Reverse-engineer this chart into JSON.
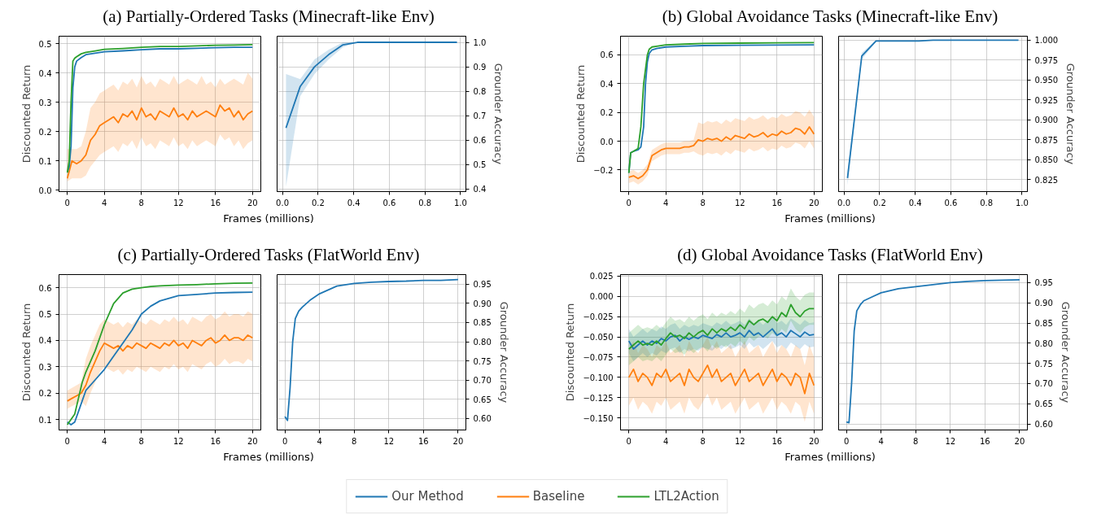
{
  "chart_data": [
    {
      "type": "line",
      "title": "(a) Partially-Ordered Tasks (Minecraft-like Env)",
      "xlabel": "Frames (millions)",
      "ylabel": "Discounted Return",
      "grid": true,
      "legend": "bottom",
      "xlim": [
        -0.9,
        20.9
      ],
      "xticks": [
        0,
        4,
        8,
        12,
        16,
        20
      ],
      "ylim": [
        -0.005,
        0.525
      ],
      "yticks": [
        {
          "value": 0,
          "label": "0.0"
        },
        {
          "value": 0.1,
          "label": "0.1"
        },
        {
          "value": 0.2,
          "label": "0.2"
        },
        {
          "value": 0.3,
          "label": "0.3"
        },
        {
          "value": 0.4,
          "label": "0.4"
        },
        {
          "value": 0.5,
          "label": "0.5"
        }
      ],
      "x": [
        0,
        0.5,
        1,
        1.5,
        2,
        2.5,
        3,
        3.5,
        4,
        4.5,
        5,
        5.5,
        6,
        6.5,
        7,
        7.5,
        8,
        8.5,
        9,
        9.5,
        10,
        10.5,
        11,
        11.5,
        12,
        12.5,
        13,
        13.5,
        14,
        14.5,
        15,
        15.5,
        16,
        16.5,
        17,
        17.5,
        18,
        18.5,
        19,
        19.5,
        20
      ],
      "series": [
        {
          "name": "Baseline",
          "color": "#ff7f0e",
          "values": [
            0.04,
            0.1,
            0.09,
            0.1,
            0.12,
            0.17,
            0.19,
            0.22,
            0.23,
            0.24,
            0.25,
            0.23,
            0.26,
            0.25,
            0.27,
            0.24,
            0.28,
            0.25,
            0.26,
            0.24,
            0.27,
            0.26,
            0.25,
            0.28,
            0.25,
            0.26,
            0.24,
            0.27,
            0.25,
            0.26,
            0.27,
            0.26,
            0.25,
            0.29,
            0.27,
            0.28,
            0.25,
            0.27,
            0.24,
            0.26,
            0.27
          ],
          "lower": [
            0.03,
            0.04,
            0.04,
            0.04,
            0.05,
            0.08,
            0.1,
            0.12,
            0.13,
            0.14,
            0.15,
            0.13,
            0.16,
            0.15,
            0.17,
            0.14,
            0.18,
            0.15,
            0.16,
            0.14,
            0.17,
            0.16,
            0.15,
            0.18,
            0.15,
            0.16,
            0.14,
            0.17,
            0.15,
            0.16,
            0.17,
            0.16,
            0.15,
            0.19,
            0.17,
            0.18,
            0.15,
            0.17,
            0.14,
            0.16,
            0.17
          ],
          "upper": [
            0.14,
            0.14,
            0.14,
            0.15,
            0.2,
            0.28,
            0.3,
            0.33,
            0.34,
            0.35,
            0.36,
            0.34,
            0.37,
            0.36,
            0.38,
            0.35,
            0.39,
            0.36,
            0.37,
            0.35,
            0.38,
            0.37,
            0.36,
            0.39,
            0.36,
            0.37,
            0.38,
            0.37,
            0.36,
            0.39,
            0.36,
            0.37,
            0.35,
            0.38,
            0.36,
            0.37,
            0.38,
            0.37,
            0.36,
            0.4,
            0.38
          ]
        },
        {
          "name": "Our Method",
          "color": "#1f77b4",
          "x": [
            0,
            0.2,
            0.4,
            0.6,
            0.8,
            1.0,
            1.5,
            2,
            3,
            4,
            6,
            8,
            10,
            12,
            14,
            16,
            18,
            20
          ],
          "values": [
            0.06,
            0.08,
            0.15,
            0.35,
            0.42,
            0.44,
            0.452,
            0.462,
            0.467,
            0.472,
            0.475,
            0.479,
            0.482,
            0.482,
            0.484,
            0.486,
            0.487,
            0.487
          ]
        },
        {
          "name": "LTL2Action",
          "color": "#2ca02c",
          "x": [
            0,
            0.2,
            0.4,
            0.6,
            0.8,
            1.0,
            1.5,
            2,
            3,
            4,
            6,
            8,
            10,
            12,
            14,
            16,
            18,
            20
          ],
          "values": [
            0.06,
            0.1,
            0.3,
            0.44,
            0.45,
            0.455,
            0.465,
            0.47,
            0.475,
            0.48,
            0.483,
            0.487,
            0.49,
            0.49,
            0.492,
            0.494,
            0.495,
            0.496
          ]
        }
      ]
    },
    {
      "type": "line",
      "y2label": "Grounder Accuracy",
      "grid": true,
      "xlim": [
        -0.03,
        1.03
      ],
      "xticks": [
        {
          "value": 0,
          "label": "0.0"
        },
        {
          "value": 0.2,
          "label": "0.2"
        },
        {
          "value": 0.4,
          "label": "0.4"
        },
        {
          "value": 0.6,
          "label": "0.6"
        },
        {
          "value": 0.8,
          "label": "0.8"
        },
        {
          "value": 1,
          "label": "1.0"
        }
      ],
      "y2lim": [
        0.39,
        1.025
      ],
      "y2ticks": [
        0.4,
        0.5,
        0.6,
        0.7,
        0.8,
        0.9,
        {
          "value": 1,
          "label": "1.0"
        }
      ],
      "series": [
        {
          "color": "#1f77b4",
          "axis": "y2",
          "x": [
            0.02,
            0.1,
            0.18,
            0.26,
            0.34,
            0.42,
            0.5,
            0.58,
            0.66,
            0.74,
            0.82,
            0.9,
            0.98
          ],
          "values": [
            0.65,
            0.82,
            0.9,
            0.95,
            0.99,
            1.0,
            1.0,
            1.0,
            1.0,
            1.0,
            1.0,
            1.0,
            1.0
          ],
          "lower": [
            0.41,
            0.78,
            0.87,
            0.93,
            0.98,
            1.0,
            1.0,
            1.0,
            1.0,
            1.0,
            1.0,
            1.0,
            1.0
          ],
          "upper": [
            0.87,
            0.85,
            0.93,
            0.97,
            1.0,
            1.0,
            1.0,
            1.0,
            1.0,
            1.0,
            1.0,
            1.0,
            1.0
          ]
        }
      ]
    },
    {
      "type": "line",
      "title": "(b) Global Avoidance Tasks (Minecraft-like Env)",
      "xlabel": "Frames (millions)",
      "ylabel": "Discounted Return",
      "grid": true,
      "xlim": [
        -0.9,
        20.9
      ],
      "xticks": [
        0,
        4,
        8,
        12,
        16,
        20
      ],
      "ylim": [
        -0.35,
        0.73
      ],
      "yticks": [
        {
          "value": -0.2,
          "label": "−0.2"
        },
        {
          "value": 0,
          "label": "0.0"
        },
        {
          "value": 0.2,
          "label": "0.2"
        },
        {
          "value": 0.4,
          "label": "0.4"
        },
        {
          "value": 0.6,
          "label": "0.6"
        }
      ],
      "x": [
        0,
        0.5,
        1,
        1.5,
        2,
        2.5,
        3,
        3.5,
        4,
        4.5,
        5,
        5.5,
        6,
        6.5,
        7,
        7.5,
        8,
        8.5,
        9,
        9.5,
        10,
        10.5,
        11,
        11.5,
        12,
        12.5,
        13,
        13.5,
        14,
        14.5,
        15,
        15.5,
        16,
        16.5,
        17,
        17.5,
        18,
        18.5,
        19,
        19.5,
        20
      ],
      "series": [
        {
          "color": "#ff7f0e",
          "values": [
            -0.25,
            -0.24,
            -0.26,
            -0.24,
            -0.2,
            -0.1,
            -0.08,
            -0.06,
            -0.05,
            -0.05,
            -0.05,
            -0.05,
            -0.04,
            -0.04,
            -0.03,
            0.01,
            0.0,
            0.02,
            0.01,
            0.02,
            0.0,
            0.03,
            0.01,
            0.04,
            0.03,
            0.02,
            0.05,
            0.03,
            0.04,
            0.06,
            0.03,
            0.05,
            0.04,
            0.07,
            0.05,
            0.06,
            0.09,
            0.08,
            0.05,
            0.1,
            0.05
          ],
          "lower": [
            -0.29,
            -0.28,
            -0.3,
            -0.28,
            -0.24,
            -0.14,
            -0.12,
            -0.1,
            -0.09,
            -0.09,
            -0.09,
            -0.09,
            -0.08,
            -0.08,
            -0.07,
            -0.09,
            -0.1,
            -0.08,
            -0.09,
            -0.08,
            -0.1,
            -0.07,
            -0.09,
            -0.06,
            -0.07,
            -0.08,
            -0.05,
            -0.07,
            -0.06,
            -0.04,
            -0.07,
            -0.05,
            -0.06,
            -0.03,
            -0.05,
            -0.04,
            -0.01,
            -0.02,
            -0.05,
            0.0,
            -0.05
          ],
          "upper": [
            -0.21,
            -0.2,
            -0.22,
            -0.2,
            -0.16,
            -0.06,
            -0.04,
            -0.02,
            -0.01,
            -0.01,
            -0.01,
            -0.01,
            0.0,
            0.0,
            0.01,
            0.13,
            0.12,
            0.14,
            0.13,
            0.14,
            0.12,
            0.15,
            0.13,
            0.16,
            0.15,
            0.14,
            0.17,
            0.15,
            0.16,
            0.18,
            0.15,
            0.17,
            0.16,
            0.19,
            0.17,
            0.18,
            0.21,
            0.2,
            0.17,
            0.22,
            0.17
          ]
        },
        {
          "color": "#1f77b4",
          "x": [
            0,
            0.2,
            0.5,
            1,
            1.3,
            1.6,
            1.8,
            2,
            2.2,
            2.5,
            3,
            4,
            6,
            8,
            12,
            16,
            20
          ],
          "values": [
            -0.22,
            -0.08,
            -0.07,
            -0.06,
            -0.04,
            0.1,
            0.4,
            0.55,
            0.61,
            0.635,
            0.645,
            0.655,
            0.66,
            0.665,
            0.667,
            0.669,
            0.67
          ]
        },
        {
          "color": "#2ca02c",
          "x": [
            0,
            0.2,
            0.5,
            1,
            1.3,
            1.6,
            1.8,
            2,
            2.2,
            2.5,
            3,
            4,
            6,
            8,
            12,
            16,
            20
          ],
          "values": [
            -0.22,
            -0.08,
            -0.07,
            -0.05,
            0.1,
            0.4,
            0.5,
            0.6,
            0.64,
            0.655,
            0.66,
            0.67,
            0.675,
            0.68,
            0.682,
            0.684,
            0.685
          ]
        }
      ]
    },
    {
      "type": "line",
      "y2label": "Grounder Accuracy",
      "grid": true,
      "xlim": [
        -0.03,
        1.03
      ],
      "xticks": [
        {
          "value": 0,
          "label": "0.0"
        },
        {
          "value": 0.2,
          "label": "0.2"
        },
        {
          "value": 0.4,
          "label": "0.4"
        },
        {
          "value": 0.6,
          "label": "0.6"
        },
        {
          "value": 0.8,
          "label": "0.8"
        },
        {
          "value": 1,
          "label": "1.0"
        }
      ],
      "y2lim": [
        0.81,
        1.005
      ],
      "y2ticks": [
        0.825,
        {
          "value": 0.85,
          "label": "0.850"
        },
        0.875,
        {
          "value": 0.9,
          "label": "0.900"
        },
        0.925,
        {
          "value": 0.95,
          "label": "0.950"
        },
        0.975,
        {
          "value": 1,
          "label": "1.000"
        }
      ],
      "series": [
        {
          "color": "#1f77b4",
          "axis": "y2",
          "x": [
            0.02,
            0.1,
            0.18,
            0.26,
            0.34,
            0.42,
            0.5,
            0.58,
            0.66,
            0.74,
            0.82,
            0.9,
            0.98
          ],
          "values": [
            0.827,
            0.98,
            0.999,
            0.999,
            0.999,
            0.999,
            1.0,
            1.0,
            1.0,
            1.0,
            1.0,
            1.0,
            1.0
          ],
          "lower": [
            0.818,
            0.976,
            0.998,
            0.999,
            0.999,
            0.999,
            1.0,
            1.0,
            1.0,
            1.0,
            1.0,
            1.0,
            1.0
          ],
          "upper": [
            0.836,
            0.984,
            1.0,
            1.0,
            1.0,
            1.0,
            1.0,
            1.0,
            1.0,
            1.0,
            1.0,
            1.0,
            1.0
          ]
        }
      ]
    },
    {
      "type": "line",
      "title": "(c) Partially-Ordered Tasks (FlatWorld Env)",
      "xlabel": "Frames (millions)",
      "ylabel": "Discounted Return",
      "grid": true,
      "xlim": [
        -0.9,
        20.9
      ],
      "xticks": [
        0,
        4,
        8,
        12,
        16,
        20
      ],
      "ylim": [
        0.06,
        0.65
      ],
      "yticks": [
        0.1,
        0.2,
        0.3,
        0.4,
        0.5,
        0.6
      ],
      "x": [
        0,
        0.5,
        1,
        1.5,
        2,
        2.5,
        3,
        3.5,
        4,
        4.5,
        5,
        5.5,
        6,
        6.5,
        7,
        7.5,
        8,
        8.5,
        9,
        9.5,
        10,
        10.5,
        11,
        11.5,
        12,
        12.5,
        13,
        13.5,
        14,
        14.5,
        15,
        15.5,
        16,
        16.5,
        17,
        17.5,
        18,
        18.5,
        19,
        19.5,
        20
      ],
      "series": [
        {
          "color": "#ff7f0e",
          "values": [
            0.17,
            0.18,
            0.19,
            0.2,
            0.23,
            0.28,
            0.32,
            0.36,
            0.39,
            0.38,
            0.37,
            0.38,
            0.36,
            0.38,
            0.37,
            0.39,
            0.38,
            0.37,
            0.39,
            0.38,
            0.37,
            0.39,
            0.38,
            0.4,
            0.38,
            0.39,
            0.37,
            0.4,
            0.39,
            0.38,
            0.4,
            0.41,
            0.39,
            0.4,
            0.42,
            0.4,
            0.41,
            0.41,
            0.4,
            0.42,
            0.41
          ],
          "lower": [
            0.14,
            0.15,
            0.16,
            0.17,
            0.15,
            0.2,
            0.24,
            0.28,
            0.3,
            0.29,
            0.28,
            0.29,
            0.27,
            0.29,
            0.28,
            0.3,
            0.29,
            0.28,
            0.3,
            0.29,
            0.28,
            0.3,
            0.29,
            0.31,
            0.29,
            0.3,
            0.28,
            0.31,
            0.3,
            0.29,
            0.31,
            0.32,
            0.3,
            0.31,
            0.33,
            0.31,
            0.32,
            0.32,
            0.31,
            0.33,
            0.32
          ],
          "upper": [
            0.21,
            0.22,
            0.23,
            0.24,
            0.33,
            0.38,
            0.42,
            0.46,
            0.48,
            0.47,
            0.46,
            0.47,
            0.45,
            0.47,
            0.46,
            0.48,
            0.47,
            0.46,
            0.48,
            0.47,
            0.46,
            0.48,
            0.47,
            0.49,
            0.47,
            0.48,
            0.46,
            0.49,
            0.48,
            0.47,
            0.49,
            0.5,
            0.48,
            0.49,
            0.51,
            0.49,
            0.5,
            0.5,
            0.49,
            0.51,
            0.5
          ]
        },
        {
          "color": "#1f77b4",
          "x": [
            0,
            0.4,
            0.8,
            1.2,
            1.6,
            2,
            3,
            4,
            5,
            6,
            7,
            8,
            9,
            10,
            12,
            14,
            16,
            18,
            20
          ],
          "values": [
            0.09,
            0.08,
            0.09,
            0.13,
            0.17,
            0.21,
            0.25,
            0.29,
            0.34,
            0.39,
            0.44,
            0.5,
            0.53,
            0.55,
            0.57,
            0.575,
            0.58,
            0.582,
            0.583
          ]
        },
        {
          "color": "#2ca02c",
          "x": [
            0,
            0.4,
            0.8,
            1.2,
            1.6,
            2,
            3,
            4,
            5,
            6,
            7,
            8,
            9,
            10,
            12,
            14,
            16,
            18,
            20
          ],
          "values": [
            0.08,
            0.1,
            0.12,
            0.18,
            0.24,
            0.28,
            0.36,
            0.46,
            0.54,
            0.58,
            0.595,
            0.6,
            0.605,
            0.607,
            0.61,
            0.612,
            0.615,
            0.617,
            0.618
          ]
        }
      ]
    },
    {
      "type": "line",
      "y2label": "Grounder Accuracy",
      "grid": true,
      "xlim": [
        -0.9,
        20.9
      ],
      "xticks": [
        0,
        4,
        8,
        12,
        16,
        20
      ],
      "y2lim": [
        0.57,
        0.975
      ],
      "y2ticks": [
        {
          "value": 0.6,
          "label": "0.60"
        },
        0.65,
        {
          "value": 0.7,
          "label": "0.70"
        },
        0.75,
        {
          "value": 0.8,
          "label": "0.80"
        },
        0.85,
        {
          "value": 0.9,
          "label": "0.90"
        },
        0.95
      ],
      "series": [
        {
          "color": "#1f77b4",
          "axis": "y2",
          "x": [
            0,
            0.3,
            0.6,
            0.9,
            1.2,
            1.6,
            2,
            3,
            4,
            6,
            8,
            10,
            12,
            14,
            16,
            18,
            20
          ],
          "values": [
            0.605,
            0.595,
            0.68,
            0.8,
            0.86,
            0.88,
            0.89,
            0.91,
            0.925,
            0.945,
            0.952,
            0.955,
            0.957,
            0.958,
            0.96,
            0.96,
            0.962
          ]
        }
      ]
    },
    {
      "type": "line",
      "title": "(d) Global Avoidance Tasks (FlatWorld Env)",
      "xlabel": "Frames (millions)",
      "ylabel": "Discounted Return",
      "grid": true,
      "xlim": [
        -0.9,
        20.9
      ],
      "xticks": [
        0,
        4,
        8,
        12,
        16,
        20
      ],
      "ylim": [
        -0.165,
        0.027
      ],
      "yticks": [
        {
          "value": -0.15,
          "label": "−0.150"
        },
        {
          "value": -0.125,
          "label": "−0.125"
        },
        {
          "value": -0.1,
          "label": "−0.100"
        },
        {
          "value": -0.075,
          "label": "−0.075"
        },
        {
          "value": -0.05,
          "label": "−0.050"
        },
        {
          "value": -0.025,
          "label": "−0.025"
        },
        {
          "value": 0,
          "label": "0.000"
        },
        0.025
      ],
      "x": [
        0,
        0.5,
        1,
        1.5,
        2,
        2.5,
        3,
        3.5,
        4,
        4.5,
        5,
        5.5,
        6,
        6.5,
        7,
        7.5,
        8,
        8.5,
        9,
        9.5,
        10,
        10.5,
        11,
        11.5,
        12,
        12.5,
        13,
        13.5,
        14,
        14.5,
        15,
        15.5,
        16,
        16.5,
        17,
        17.5,
        18,
        18.5,
        19,
        19.5,
        20
      ],
      "series": [
        {
          "color": "#ff7f0e",
          "values": [
            -0.1,
            -0.09,
            -0.105,
            -0.095,
            -0.1,
            -0.11,
            -0.095,
            -0.1,
            -0.09,
            -0.105,
            -0.1,
            -0.095,
            -0.11,
            -0.09,
            -0.1,
            -0.105,
            -0.095,
            -0.085,
            -0.1,
            -0.09,
            -0.105,
            -0.1,
            -0.095,
            -0.11,
            -0.1,
            -0.09,
            -0.105,
            -0.1,
            -0.095,
            -0.11,
            -0.1,
            -0.09,
            -0.105,
            -0.095,
            -0.1,
            -0.11,
            -0.095,
            -0.1,
            -0.12,
            -0.095,
            -0.11
          ],
          "lower": [
            -0.135,
            -0.125,
            -0.14,
            -0.13,
            -0.135,
            -0.145,
            -0.13,
            -0.135,
            -0.125,
            -0.14,
            -0.135,
            -0.13,
            -0.145,
            -0.125,
            -0.135,
            -0.14,
            -0.13,
            -0.12,
            -0.135,
            -0.125,
            -0.14,
            -0.135,
            -0.13,
            -0.145,
            -0.135,
            -0.125,
            -0.14,
            -0.135,
            -0.13,
            -0.145,
            -0.135,
            -0.125,
            -0.14,
            -0.13,
            -0.135,
            -0.145,
            -0.13,
            -0.135,
            -0.155,
            -0.13,
            -0.145
          ],
          "upper": [
            -0.065,
            -0.055,
            -0.07,
            -0.06,
            -0.065,
            -0.075,
            -0.06,
            -0.065,
            -0.055,
            -0.07,
            -0.065,
            -0.06,
            -0.075,
            -0.055,
            -0.065,
            -0.07,
            -0.06,
            -0.05,
            -0.065,
            -0.055,
            -0.07,
            -0.065,
            -0.06,
            -0.075,
            -0.065,
            -0.055,
            -0.07,
            -0.065,
            -0.06,
            -0.075,
            -0.065,
            -0.055,
            -0.07,
            -0.06,
            -0.065,
            -0.075,
            -0.06,
            -0.065,
            -0.085,
            -0.06,
            -0.075
          ]
        },
        {
          "color": "#1f77b4",
          "values": [
            -0.055,
            -0.065,
            -0.06,
            -0.055,
            -0.06,
            -0.055,
            -0.058,
            -0.052,
            -0.055,
            -0.05,
            -0.048,
            -0.055,
            -0.05,
            -0.053,
            -0.05,
            -0.052,
            -0.048,
            -0.05,
            -0.052,
            -0.047,
            -0.05,
            -0.045,
            -0.05,
            -0.048,
            -0.045,
            -0.05,
            -0.042,
            -0.048,
            -0.045,
            -0.05,
            -0.045,
            -0.04,
            -0.048,
            -0.045,
            -0.05,
            -0.042,
            -0.046,
            -0.05,
            -0.044,
            -0.048,
            -0.047
          ],
          "lower": [
            -0.07,
            -0.08,
            -0.075,
            -0.07,
            -0.075,
            -0.07,
            -0.073,
            -0.067,
            -0.07,
            -0.065,
            -0.063,
            -0.07,
            -0.065,
            -0.068,
            -0.065,
            -0.067,
            -0.063,
            -0.065,
            -0.067,
            -0.062,
            -0.065,
            -0.06,
            -0.065,
            -0.063,
            -0.06,
            -0.065,
            -0.057,
            -0.063,
            -0.06,
            -0.065,
            -0.06,
            -0.055,
            -0.063,
            -0.06,
            -0.065,
            -0.057,
            -0.061,
            -0.065,
            -0.059,
            -0.063,
            -0.062
          ],
          "upper": [
            -0.04,
            -0.05,
            -0.045,
            -0.04,
            -0.045,
            -0.04,
            -0.043,
            -0.037,
            -0.04,
            -0.035,
            -0.033,
            -0.04,
            -0.035,
            -0.038,
            -0.035,
            -0.037,
            -0.033,
            -0.035,
            -0.037,
            -0.032,
            -0.035,
            -0.03,
            -0.035,
            -0.033,
            -0.03,
            -0.035,
            -0.027,
            -0.033,
            -0.03,
            -0.035,
            -0.03,
            -0.025,
            -0.033,
            -0.03,
            -0.035,
            -0.027,
            -0.031,
            -0.035,
            -0.029,
            -0.033,
            -0.032
          ]
        },
        {
          "color": "#2ca02c",
          "values": [
            -0.065,
            -0.06,
            -0.055,
            -0.06,
            -0.058,
            -0.06,
            -0.055,
            -0.06,
            -0.052,
            -0.045,
            -0.05,
            -0.048,
            -0.052,
            -0.045,
            -0.05,
            -0.045,
            -0.042,
            -0.048,
            -0.04,
            -0.045,
            -0.04,
            -0.043,
            -0.038,
            -0.042,
            -0.035,
            -0.04,
            -0.03,
            -0.035,
            -0.03,
            -0.028,
            -0.032,
            -0.025,
            -0.03,
            -0.02,
            -0.025,
            -0.01,
            -0.02,
            -0.025,
            -0.018,
            -0.015,
            -0.015
          ],
          "lower": [
            -0.085,
            -0.08,
            -0.075,
            -0.08,
            -0.078,
            -0.08,
            -0.075,
            -0.08,
            -0.072,
            -0.065,
            -0.07,
            -0.068,
            -0.072,
            -0.065,
            -0.07,
            -0.065,
            -0.062,
            -0.068,
            -0.06,
            -0.065,
            -0.06,
            -0.063,
            -0.058,
            -0.062,
            -0.055,
            -0.06,
            -0.05,
            -0.055,
            -0.05,
            -0.048,
            -0.052,
            -0.045,
            -0.05,
            -0.04,
            -0.045,
            -0.03,
            -0.04,
            -0.045,
            -0.038,
            -0.035,
            -0.035
          ],
          "upper": [
            -0.045,
            -0.04,
            -0.035,
            -0.04,
            -0.038,
            -0.04,
            -0.035,
            -0.04,
            -0.032,
            -0.025,
            -0.03,
            -0.028,
            -0.032,
            -0.025,
            -0.03,
            -0.025,
            -0.022,
            -0.028,
            -0.02,
            -0.025,
            -0.02,
            -0.023,
            -0.018,
            -0.022,
            -0.015,
            -0.02,
            -0.01,
            -0.015,
            -0.01,
            -0.008,
            -0.012,
            -0.005,
            -0.01,
            0.0,
            -0.005,
            0.01,
            0.0,
            -0.005,
            0.002,
            0.005,
            0.005
          ]
        }
      ]
    },
    {
      "type": "line",
      "y2label": "Grounder Accuracy",
      "grid": true,
      "xlim": [
        -0.9,
        20.9
      ],
      "xticks": [
        0,
        4,
        8,
        12,
        16,
        20
      ],
      "y2lim": [
        0.585,
        0.97
      ],
      "y2ticks": [
        {
          "value": 0.6,
          "label": "0.60"
        },
        0.65,
        {
          "value": 0.7,
          "label": "0.70"
        },
        0.75,
        {
          "value": 0.8,
          "label": "0.80"
        },
        0.85,
        {
          "value": 0.9,
          "label": "0.90"
        },
        0.95
      ],
      "series": [
        {
          "color": "#1f77b4",
          "axis": "y2",
          "x": [
            0,
            0.3,
            0.6,
            0.9,
            1.2,
            1.6,
            2,
            3,
            4,
            6,
            8,
            10,
            12,
            14,
            16,
            18,
            20
          ],
          "values": [
            0.605,
            0.603,
            0.7,
            0.83,
            0.88,
            0.895,
            0.905,
            0.915,
            0.925,
            0.935,
            0.94,
            0.945,
            0.95,
            0.953,
            0.955,
            0.956,
            0.957
          ]
        }
      ]
    }
  ]
}
